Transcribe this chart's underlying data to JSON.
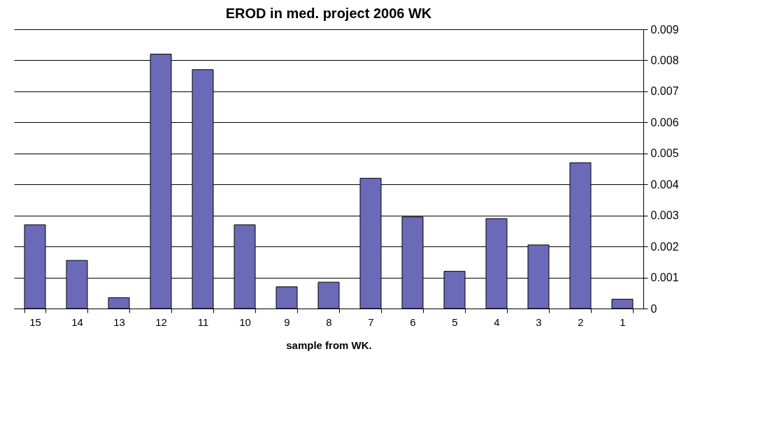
{
  "chart_data": {
    "type": "bar",
    "title": "EROD in med. project 2006 WK",
    "xlabel": "sample from WK.",
    "categories": [
      "15",
      "14",
      "13",
      "12",
      "11",
      "10",
      "9",
      "8",
      "7",
      "6",
      "5",
      "4",
      "3",
      "2",
      "1"
    ],
    "values": [
      0.0027,
      0.00155,
      0.00035,
      0.0082,
      0.0077,
      0.0027,
      0.0007,
      0.00085,
      0.0042,
      0.00295,
      0.0012,
      0.0029,
      0.00205,
      0.0047,
      0.0003
    ],
    "color": "#6a6ab8",
    "ylim": [
      0,
      0.009
    ],
    "yticks": [
      0,
      0.001,
      0.002,
      0.003,
      0.004,
      0.005,
      0.006,
      0.007,
      0.008,
      0.009
    ],
    "grid": "y"
  }
}
